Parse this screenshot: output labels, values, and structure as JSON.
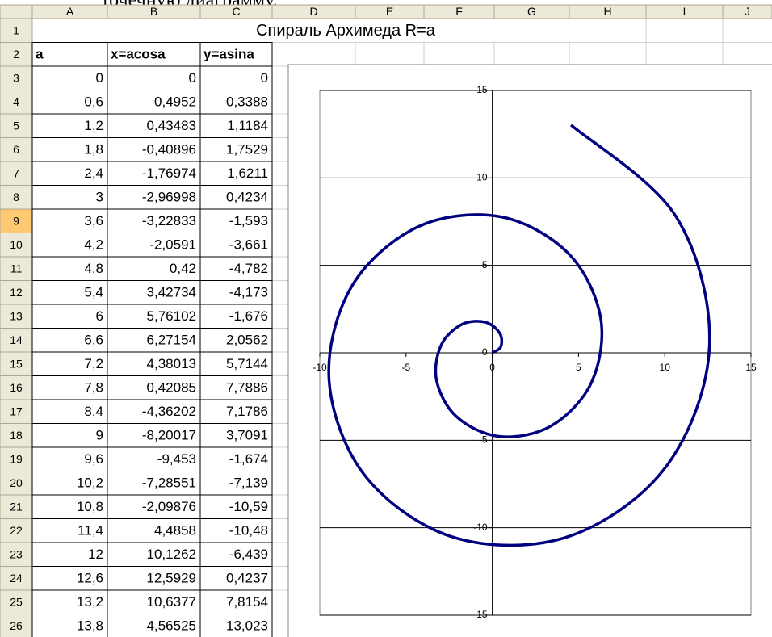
{
  "caption": "точечную диаграмму.",
  "columns": [
    "A",
    "B",
    "C",
    "D",
    "E",
    "F",
    "G",
    "H",
    "I",
    "J"
  ],
  "row_numbers": [
    1,
    2,
    3,
    4,
    5,
    6,
    7,
    8,
    9,
    10,
    11,
    12,
    13,
    14,
    15,
    16,
    17,
    18,
    19,
    20,
    21,
    22,
    23,
    24,
    25,
    26
  ],
  "title": "Спираль Архимеда R=a",
  "table": {
    "header": [
      "a",
      "x=acosa",
      "y=asina"
    ],
    "rows": [
      [
        "0",
        "0",
        "0"
      ],
      [
        "0,6",
        "0,4952",
        "0,3388"
      ],
      [
        "1,2",
        "0,43483",
        "1,1184"
      ],
      [
        "1,8",
        "-0,40896",
        "1,7529"
      ],
      [
        "2,4",
        "-1,76974",
        "1,6211"
      ],
      [
        "3",
        "-2,96998",
        "0,4234"
      ],
      [
        "3,6",
        "-3,22833",
        "-1,593"
      ],
      [
        "4,2",
        "-2,0591",
        "-3,661"
      ],
      [
        "4,8",
        "0,42",
        "-4,782"
      ],
      [
        "5,4",
        "3,42734",
        "-4,173"
      ],
      [
        "6",
        "5,76102",
        "-1,676"
      ],
      [
        "6,6",
        "6,27154",
        "2,0562"
      ],
      [
        "7,2",
        "4,38013",
        "5,7144"
      ],
      [
        "7,8",
        "0,42085",
        "7,7886"
      ],
      [
        "8,4",
        "-4,36202",
        "7,1786"
      ],
      [
        "9",
        "-8,20017",
        "3,7091"
      ],
      [
        "9,6",
        "-9,453",
        "-1,674"
      ],
      [
        "10,2",
        "-7,28551",
        "-7,139"
      ],
      [
        "10,8",
        "-2,09876",
        "-10,59"
      ],
      [
        "11,4",
        "4,4858",
        "-10,48"
      ],
      [
        "12",
        "10,1262",
        "-6,439"
      ],
      [
        "12,6",
        "12,5929",
        "0,4237"
      ],
      [
        "13,2",
        "10,6377",
        "7,8154"
      ],
      [
        "13,8",
        "4,56525",
        "13,023"
      ]
    ]
  },
  "chart_data": {
    "type": "scatter",
    "smooth": true,
    "x": [
      0,
      0.4952,
      0.43483,
      -0.40896,
      -1.76974,
      -2.96998,
      -3.22833,
      -2.0591,
      0.42,
      3.42734,
      5.76102,
      6.27154,
      4.38013,
      0.42085,
      -4.36202,
      -8.20017,
      -9.453,
      -7.28551,
      -2.09876,
      4.4858,
      10.1262,
      12.5929,
      10.6377,
      4.56525
    ],
    "series": [
      {
        "color": "#000080",
        "values": [
          0,
          0.3388,
          1.1184,
          1.7529,
          1.6211,
          0.4234,
          -1.593,
          -3.661,
          -4.782,
          -4.173,
          -1.676,
          2.0562,
          5.7144,
          7.7886,
          7.1786,
          3.7091,
          -1.674,
          -7.139,
          -10.59,
          -10.48,
          -6.439,
          0.4237,
          7.8154,
          13.023
        ]
      }
    ],
    "xlim": [
      -10,
      15
    ],
    "ylim": [
      -15,
      15
    ],
    "xticks": [
      -10,
      -5,
      0,
      5,
      10,
      15
    ],
    "yticks": [
      -15,
      -10,
      -5,
      0,
      5,
      10,
      15
    ],
    "grid": "horizontal"
  }
}
